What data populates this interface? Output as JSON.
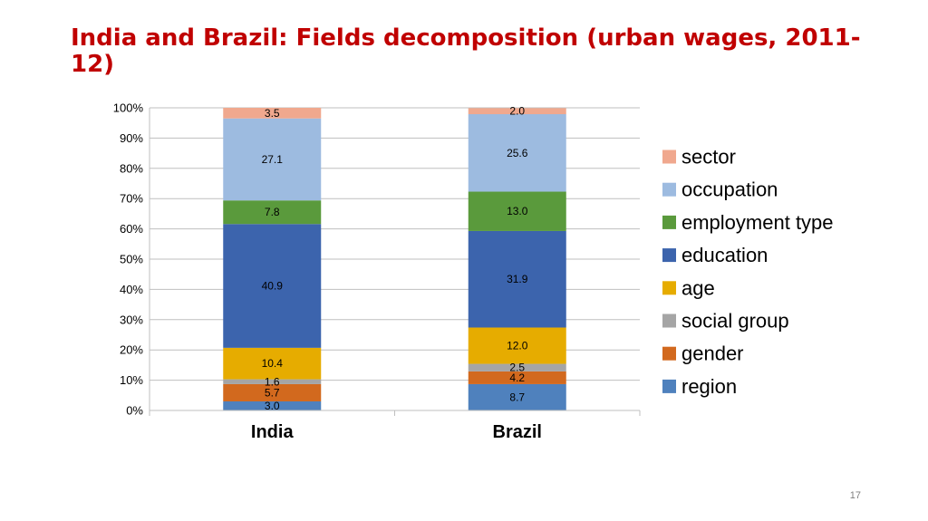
{
  "slide": {
    "title": "India and Brazil: Fields decomposition (urban wages, 2011-12)",
    "page_number": "17"
  },
  "chart_data": {
    "type": "bar",
    "stacked": true,
    "percent_stacked": true,
    "categories": [
      "India",
      "Brazil"
    ],
    "ylim": [
      0,
      100
    ],
    "y_ticks": [
      "0%",
      "10%",
      "20%",
      "30%",
      "40%",
      "50%",
      "60%",
      "70%",
      "80%",
      "90%",
      "100%"
    ],
    "grid": true,
    "legend_position": "right",
    "series": [
      {
        "name": "region",
        "values": [
          3.0,
          8.7
        ],
        "color": "#4f81bd"
      },
      {
        "name": "gender",
        "values": [
          5.7,
          4.2
        ],
        "color": "#d2691e"
      },
      {
        "name": "social group",
        "values": [
          1.6,
          2.5
        ],
        "color": "#a5a5a5"
      },
      {
        "name": "age",
        "values": [
          10.4,
          12.0
        ],
        "color": "#e6ac00"
      },
      {
        "name": "education",
        "values": [
          40.9,
          31.9
        ],
        "color": "#3c64ad"
      },
      {
        "name": "employment type",
        "values": [
          7.8,
          13.0
        ],
        "color": "#5a9a3c"
      },
      {
        "name": "occupation",
        "values": [
          27.1,
          25.6
        ],
        "color": "#9dbbe0"
      },
      {
        "name": "sector",
        "values": [
          3.5,
          2.0
        ],
        "color": "#f0a88e"
      }
    ],
    "data_labels": [
      [
        "3.0",
        "5.7",
        "1.6",
        "10.4",
        "40.9",
        "7.8",
        "27.1",
        "3.5"
      ],
      [
        "8.7",
        "4.2",
        "2.5",
        "12.0",
        "31.9",
        "13.0",
        "25.6",
        "2.0"
      ]
    ]
  }
}
